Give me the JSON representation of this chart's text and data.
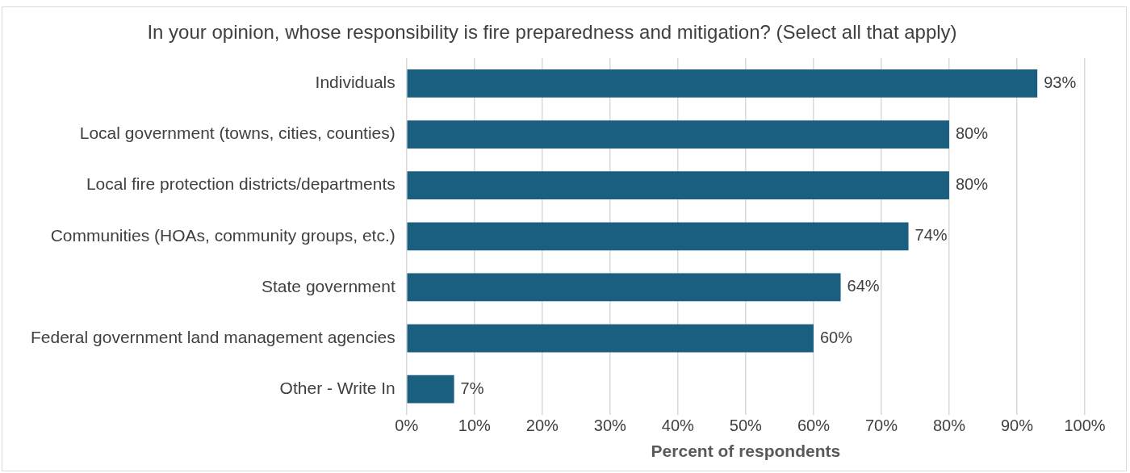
{
  "chart_data": {
    "type": "bar",
    "orientation": "horizontal",
    "title": "In your opinion, whose responsibility is fire preparedness and mitigation? (Select all that apply)",
    "xlabel": "Percent of respondents",
    "categories": [
      "Individuals",
      "Local government (towns, cities, counties)",
      "Local fire protection districts/departments",
      "Communities (HOAs, community groups, etc.)",
      "State government",
      "Federal government land management agencies",
      "Other - Write In"
    ],
    "values": [
      93,
      80,
      80,
      74,
      64,
      60,
      7
    ],
    "value_labels": [
      "93%",
      "80%",
      "80%",
      "74%",
      "64%",
      "60%",
      "7%"
    ],
    "color": "#1a5f80",
    "xlim": [
      0,
      100
    ],
    "xticks": [
      {
        "value": 0,
        "label": "0%"
      },
      {
        "value": 10,
        "label": "10%"
      },
      {
        "value": 20,
        "label": "20%"
      },
      {
        "value": 30,
        "label": "30%"
      },
      {
        "value": 40,
        "label": "40%"
      },
      {
        "value": 50,
        "label": "50%"
      },
      {
        "value": 60,
        "label": "60%"
      },
      {
        "value": 70,
        "label": "70%"
      },
      {
        "value": 80,
        "label": "80%"
      },
      {
        "value": 90,
        "label": "90%"
      },
      {
        "value": 100,
        "label": "100%"
      }
    ],
    "grid": "x",
    "legend": false
  }
}
